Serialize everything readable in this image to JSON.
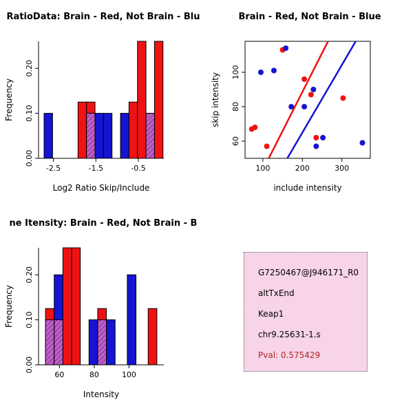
{
  "colors": {
    "red": "#F01212",
    "blue": "#1414D2",
    "overlap_fill": "#C45FC0",
    "overlap_line": "#5B21B6",
    "axis": "#000000"
  },
  "chart_data": [
    {
      "id": "ratio_histogram",
      "type": "bar",
      "title": "RatioData: Brain - Red, Not Brain - Blu",
      "xlabel": "Log2 Ratio Skip/Include",
      "ylabel": "Frequency",
      "xlim": [
        -2.85,
        0.1
      ],
      "ylim": [
        0,
        0.26
      ],
      "xticks": [
        -2.5,
        -1.5,
        -0.5
      ],
      "xtick_labels": [
        "-2.5",
        "-1.5",
        "-0.5"
      ],
      "yticks": [
        0.0,
        0.1,
        0.2
      ],
      "ytick_labels": [
        "0.00",
        "0.10",
        "0.20"
      ],
      "bin_width": 0.2,
      "bars": [
        {
          "x": -2.72,
          "h": 0.1,
          "color": "blue"
        },
        {
          "x": -1.92,
          "h": 0.125,
          "color": "red"
        },
        {
          "x": -1.72,
          "h": 0.125,
          "color": "red",
          "overlap_h": 0.1
        },
        {
          "x": -1.52,
          "h": 0.1,
          "color": "blue"
        },
        {
          "x": -1.32,
          "h": 0.1,
          "color": "blue"
        },
        {
          "x": -0.92,
          "h": 0.1,
          "color": "blue"
        },
        {
          "x": -0.72,
          "h": 0.125,
          "color": "red"
        },
        {
          "x": -0.52,
          "h": 0.26,
          "color": "red"
        },
        {
          "x": -0.32,
          "h": 0.1,
          "color": "blue",
          "overlap_h": 0.1
        },
        {
          "x": -0.12,
          "h": 0.26,
          "color": "red"
        }
      ]
    },
    {
      "id": "intensity_scatter",
      "type": "scatter",
      "title": "Brain - Red, Not Brain - Blue",
      "xlabel": "include intensity",
      "ylabel": "skip intensity",
      "xlim": [
        55,
        372
      ],
      "ylim": [
        50,
        118
      ],
      "xticks": [
        100,
        200,
        300
      ],
      "xtick_labels": [
        "100",
        "200",
        "300"
      ],
      "yticks": [
        60,
        80,
        100
      ],
      "ytick_labels": [
        "60",
        "80",
        "100"
      ],
      "series": [
        {
          "name": "brain-red",
          "color": "red",
          "points": [
            [
              72,
              67
            ],
            [
              80,
              68
            ],
            [
              110,
              57
            ],
            [
              150,
              113
            ],
            [
              205,
              96
            ],
            [
              222,
              87
            ],
            [
              235,
              62
            ],
            [
              303,
              85
            ]
          ]
        },
        {
          "name": "not-brain-blue",
          "color": "blue",
          "points": [
            [
              95,
              100
            ],
            [
              128,
              101
            ],
            [
              158,
              114
            ],
            [
              172,
              80
            ],
            [
              205,
              80
            ],
            [
              228,
              90
            ],
            [
              235,
              57
            ],
            [
              252,
              62
            ],
            [
              352,
              59
            ]
          ]
        }
      ],
      "lines": [
        {
          "color": "red",
          "x1": 115,
          "y1": 50,
          "x2": 265,
          "y2": 118
        },
        {
          "color": "blue",
          "x1": 162,
          "y1": 50,
          "x2": 335,
          "y2": 118
        }
      ]
    },
    {
      "id": "intensity_histogram",
      "type": "bar",
      "title": "ne Itensity: Brain - Red, Not Brain - B",
      "xlabel": "Intensity",
      "ylabel": "Frequency",
      "xlim": [
        48,
        120
      ],
      "ylim": [
        0,
        0.26
      ],
      "xticks": [
        60,
        80,
        100
      ],
      "xtick_labels": [
        "60",
        "80",
        "100"
      ],
      "yticks": [
        0.0,
        0.1,
        0.2
      ],
      "ytick_labels": [
        "0.00",
        "0.10",
        "0.20"
      ],
      "bin_width": 5,
      "bars": [
        {
          "x": 52,
          "h": 0.125,
          "color": "red",
          "overlap_h": 0.1
        },
        {
          "x": 57,
          "h": 0.2,
          "color": "blue",
          "overlap_h": 0.1
        },
        {
          "x": 62,
          "h": 0.26,
          "color": "red"
        },
        {
          "x": 67,
          "h": 0.26,
          "color": "red"
        },
        {
          "x": 77,
          "h": 0.1,
          "color": "blue"
        },
        {
          "x": 82,
          "h": 0.125,
          "color": "red",
          "overlap_h": 0.1
        },
        {
          "x": 87,
          "h": 0.1,
          "color": "blue"
        },
        {
          "x": 99,
          "h": 0.2,
          "color": "blue"
        },
        {
          "x": 111,
          "h": 0.125,
          "color": "red"
        }
      ]
    }
  ],
  "info_box": {
    "background": "#F7D4E8",
    "lines": [
      "G7250467@J946171_R0",
      "altTxEnd",
      "Keap1",
      "chr9.25631-1.s"
    ],
    "pval_label": "Pval: 0.575429",
    "pval_color": "#B22222"
  }
}
